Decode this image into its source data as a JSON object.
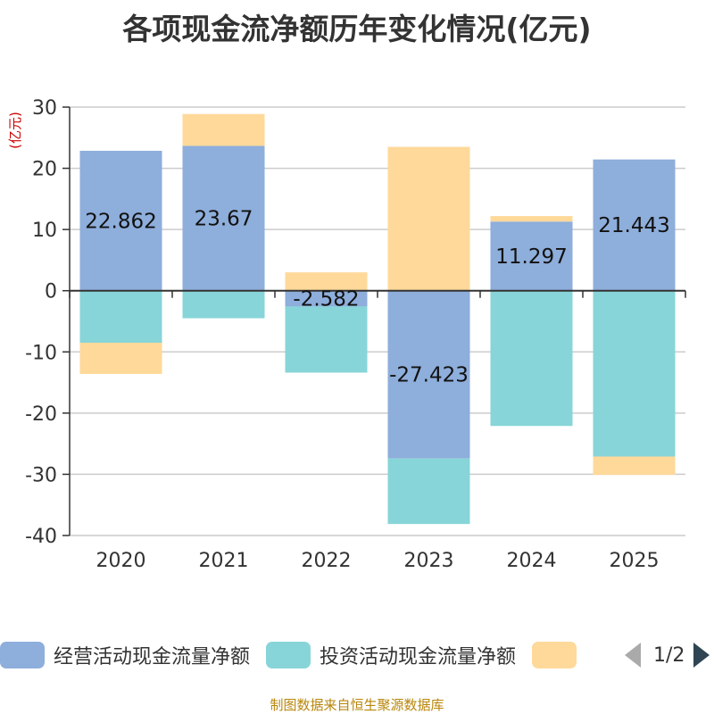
{
  "chart_data": {
    "type": "bar",
    "stacked": true,
    "title": "各项现金流净额历年变化情况(亿元)",
    "ylabel": "(亿元)",
    "xlabel": "",
    "ylim": [
      -40,
      30
    ],
    "yticks": [
      30,
      20,
      10,
      0,
      -10,
      -20,
      -30,
      -40
    ],
    "categories": [
      "2020",
      "2021",
      "2022",
      "2023",
      "2024",
      "2025"
    ],
    "series": [
      {
        "name": "经营活动现金流量净额",
        "color": "#8eaedb",
        "values": [
          22.862,
          23.67,
          -2.582,
          -27.423,
          11.297,
          21.443
        ],
        "labels": [
          "22.862",
          "23.67",
          "-2.582",
          "-27.423",
          "11.297",
          "21.443"
        ]
      },
      {
        "name": "投资活动现金流量净额",
        "color": "#87d5d8",
        "values": [
          -8.5,
          -4.5,
          -10.8,
          -10.7,
          -22.1,
          -27.1
        ]
      },
      {
        "name": "",
        "color": "#fed99a",
        "values": [
          -5.1,
          5.2,
          3.0,
          23.5,
          0.9,
          -3.0
        ]
      }
    ],
    "legend_position": "bottom",
    "pager": "1/2"
  },
  "source": "制图数据来自恒生聚源数据库"
}
